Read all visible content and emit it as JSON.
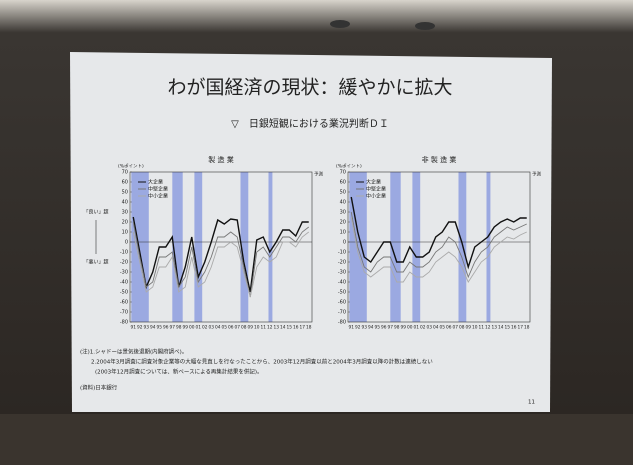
{
  "slide": {
    "title": "わが国経済の現状：緩やかに拡大",
    "subtitle": "▽　日銀短観における業況判断ＤＩ",
    "notes": [
      "(注)1.シャドーは景気後退期(内閣府調べ)。",
      "2.2004年3月調査に調査対象企業等の大幅な見直しを行なったことから、2003年12月調査以前と2004年3月調査以降の計数は連続しない",
      "(2003年12月調査については、新ベースによる再集計結果を併記)。"
    ],
    "source": "(資料)日本銀行",
    "page_number": "11"
  },
  "chart_data": [
    {
      "type": "line",
      "title": "製 造 業",
      "ylabel": "(%ポイント)",
      "forecast_label": "予測",
      "annotations": [
        "「良い」超",
        "「悪い」超"
      ],
      "categories": [
        "91",
        "92",
        "93",
        "94",
        "95",
        "96",
        "97",
        "98",
        "99",
        "00",
        "01",
        "02",
        "03",
        "04",
        "05",
        "06",
        "07",
        "08",
        "09",
        "10",
        "11",
        "12",
        "13",
        "14",
        "15",
        "16",
        "17",
        "18"
      ],
      "ylim": [
        -80,
        70
      ],
      "yticks": [
        -80,
        -70,
        -60,
        -50,
        -40,
        -30,
        -20,
        -10,
        0,
        10,
        20,
        30,
        40,
        50,
        60,
        70
      ],
      "series": [
        {
          "name": "大企業",
          "color": "#111111",
          "values": [
            25,
            -10,
            -45,
            -30,
            -5,
            -5,
            5,
            -45,
            -25,
            5,
            -35,
            -20,
            0,
            22,
            18,
            23,
            22,
            -20,
            -50,
            2,
            5,
            -10,
            0,
            12,
            12,
            6,
            20,
            20
          ]
        },
        {
          "name": "中堅企業",
          "color": "#777777",
          "values": [
            20,
            -15,
            -45,
            -40,
            -15,
            -15,
            -10,
            -45,
            -35,
            -5,
            -40,
            -30,
            -15,
            5,
            5,
            10,
            5,
            -25,
            -55,
            -10,
            -5,
            -15,
            -5,
            5,
            5,
            0,
            10,
            15
          ]
        },
        {
          "name": "中小企業",
          "color": "#aaaaaa",
          "values": [
            10,
            -20,
            -50,
            -45,
            -25,
            -25,
            -15,
            -50,
            -45,
            -15,
            -45,
            -40,
            -25,
            -5,
            -5,
            0,
            -5,
            -30,
            -55,
            -25,
            -15,
            -20,
            -15,
            0,
            0,
            -5,
            5,
            10
          ]
        }
      ]
    },
    {
      "type": "line",
      "title": "非 製 造 業",
      "ylabel": "(%ポイント)",
      "forecast_label": "予測",
      "categories": [
        "91",
        "92",
        "93",
        "94",
        "95",
        "96",
        "97",
        "98",
        "99",
        "00",
        "01",
        "02",
        "03",
        "04",
        "05",
        "06",
        "07",
        "08",
        "09",
        "10",
        "11",
        "12",
        "13",
        "14",
        "15",
        "16",
        "17",
        "18"
      ],
      "ylim": [
        -80,
        70
      ],
      "yticks": [
        -80,
        -70,
        -60,
        -50,
        -40,
        -30,
        -20,
        -10,
        0,
        10,
        20,
        30,
        40,
        50,
        60,
        70
      ],
      "series": [
        {
          "name": "大企業",
          "color": "#111111",
          "values": [
            45,
            10,
            -15,
            -20,
            -10,
            0,
            0,
            -20,
            -20,
            -5,
            -15,
            -15,
            -10,
            5,
            10,
            20,
            20,
            0,
            -25,
            -5,
            0,
            5,
            15,
            20,
            23,
            20,
            24,
            24
          ]
        },
        {
          "name": "中堅企業",
          "color": "#777777",
          "values": [
            30,
            -5,
            -25,
            -30,
            -20,
            -15,
            -15,
            -30,
            -30,
            -20,
            -25,
            -25,
            -20,
            -10,
            -5,
            5,
            0,
            -15,
            -35,
            -20,
            -10,
            -5,
            5,
            10,
            15,
            12,
            15,
            18
          ]
        },
        {
          "name": "中小企業",
          "color": "#aaaaaa",
          "values": [
            25,
            -10,
            -30,
            -35,
            -30,
            -25,
            -25,
            -40,
            -40,
            -30,
            -35,
            -35,
            -30,
            -20,
            -15,
            -10,
            -15,
            -25,
            -40,
            -30,
            -20,
            -15,
            -5,
            0,
            5,
            3,
            7,
            10
          ]
        }
      ]
    }
  ]
}
